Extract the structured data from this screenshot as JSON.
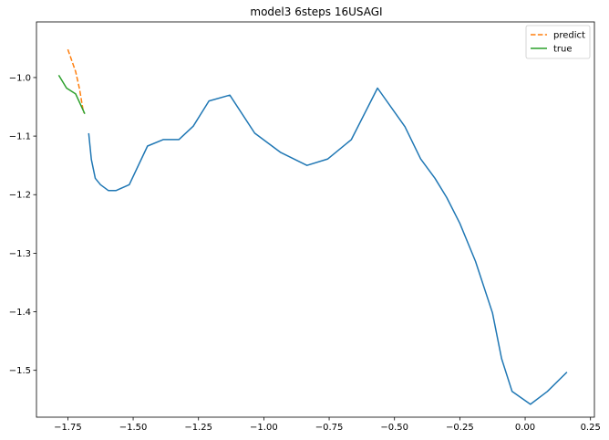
{
  "chart_data": {
    "type": "line",
    "title": "model3 6steps 16USAGI",
    "xlabel": "",
    "ylabel": "",
    "xlim": [
      -1.87,
      0.265
    ],
    "ylim": [
      -1.58,
      -0.905
    ],
    "xticks": [
      -1.75,
      -1.5,
      -1.25,
      -1.0,
      -0.75,
      -0.5,
      -0.25,
      0.0,
      0.25
    ],
    "xtick_labels": [
      "−1.75",
      "−1.50",
      "−1.25",
      "−1.00",
      "−0.75",
      "−0.50",
      "−0.25",
      "0.00",
      "0.25"
    ],
    "yticks": [
      -1.0,
      -1.1,
      -1.2,
      -1.3,
      -1.4,
      -1.5
    ],
    "ytick_labels": [
      "−1.0",
      "−1.1",
      "−1.2",
      "−1.3",
      "−1.4",
      "−1.5"
    ],
    "grid": false,
    "legend_position": "top-right",
    "colors": {
      "history": "#1f77b4",
      "predict": "#ff7f0e",
      "true": "#2ca02c"
    },
    "series": [
      {
        "color": "#1f77b4",
        "style": "solid",
        "points": [
          [
            -1.67,
            -1.095
          ],
          [
            -1.66,
            -1.14
          ],
          [
            -1.645,
            -1.172
          ],
          [
            -1.625,
            -1.183
          ],
          [
            -1.595,
            -1.193
          ],
          [
            -1.565,
            -1.193
          ],
          [
            -1.515,
            -1.183
          ],
          [
            -1.445,
            -1.117
          ],
          [
            -1.385,
            -1.106
          ],
          [
            -1.325,
            -1.106
          ],
          [
            -1.27,
            -1.083
          ],
          [
            -1.21,
            -1.04
          ],
          [
            -1.13,
            -1.03
          ],
          [
            -1.035,
            -1.095
          ],
          [
            -0.935,
            -1.128
          ],
          [
            -0.835,
            -1.15
          ],
          [
            -0.755,
            -1.139
          ],
          [
            -0.665,
            -1.106
          ],
          [
            -0.565,
            -1.018
          ],
          [
            -0.46,
            -1.084
          ],
          [
            -0.4,
            -1.139
          ],
          [
            -0.345,
            -1.172
          ],
          [
            -0.3,
            -1.205
          ],
          [
            -0.25,
            -1.249
          ],
          [
            -0.19,
            -1.314
          ],
          [
            -0.125,
            -1.402
          ],
          [
            -0.09,
            -1.48
          ],
          [
            -0.05,
            -1.536
          ],
          [
            0.02,
            -1.558
          ],
          [
            0.085,
            -1.536
          ],
          [
            0.16,
            -1.503
          ]
        ]
      },
      {
        "name": "predict",
        "color": "#ff7f0e",
        "style": "dashed",
        "points": [
          [
            -1.75,
            -0.952
          ],
          [
            -1.72,
            -0.99
          ],
          [
            -1.705,
            -1.02
          ],
          [
            -1.69,
            -1.06
          ]
        ]
      },
      {
        "name": "true",
        "color": "#2ca02c",
        "style": "solid",
        "points": [
          [
            -1.785,
            -0.996
          ],
          [
            -1.755,
            -1.018
          ],
          [
            -1.72,
            -1.028
          ],
          [
            -1.685,
            -1.062
          ]
        ]
      }
    ]
  }
}
